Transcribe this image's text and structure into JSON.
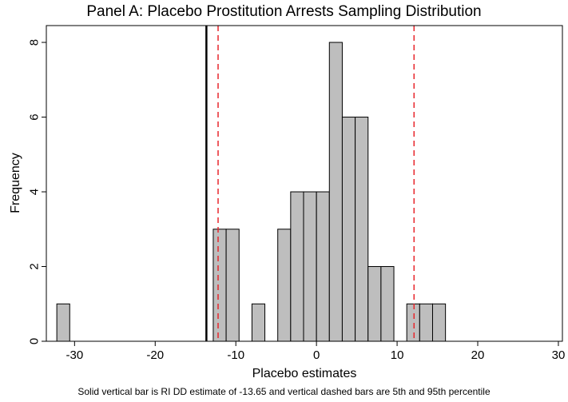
{
  "chart_data": {
    "type": "bar",
    "title": "Panel A: Placebo Prostitution Arrests Sampling Distribution",
    "xlabel": "Placebo estimates",
    "ylabel": "Frequency",
    "note": "Solid vertical bar is RI DD estimate of -13.65 and vertical dashed bars are 5th and 95th percentile",
    "xlim": [
      -33.5,
      30.5
    ],
    "ylim": [
      0,
      8.45
    ],
    "xticks": [
      -30,
      -20,
      -10,
      0,
      10,
      20,
      30
    ],
    "yticks": [
      0,
      2,
      4,
      6,
      8
    ],
    "bin_width": 1.6,
    "bins": [
      {
        "x0": -32.2,
        "count": 1
      },
      {
        "x0": -12.8,
        "count": 3
      },
      {
        "x0": -11.2,
        "count": 3
      },
      {
        "x0": -8.0,
        "count": 1
      },
      {
        "x0": -4.8,
        "count": 3
      },
      {
        "x0": -3.2,
        "count": 4
      },
      {
        "x0": -1.6,
        "count": 4
      },
      {
        "x0": 0.0,
        "count": 4
      },
      {
        "x0": 1.6,
        "count": 8
      },
      {
        "x0": 3.2,
        "count": 6
      },
      {
        "x0": 4.8,
        "count": 6
      },
      {
        "x0": 6.4,
        "count": 2
      },
      {
        "x0": 8.0,
        "count": 2
      },
      {
        "x0": 11.2,
        "count": 1
      },
      {
        "x0": 12.8,
        "count": 1
      },
      {
        "x0": 14.4,
        "count": 1
      }
    ],
    "ri_dd_estimate": -13.65,
    "percentile_5th": -12.2,
    "percentile_95th": 12.1,
    "bar_fill": "#bebebe",
    "bar_edge": "#000000",
    "estimate_line_color": "#000000",
    "percentile_line_color": "#e8262c",
    "grid": false
  }
}
